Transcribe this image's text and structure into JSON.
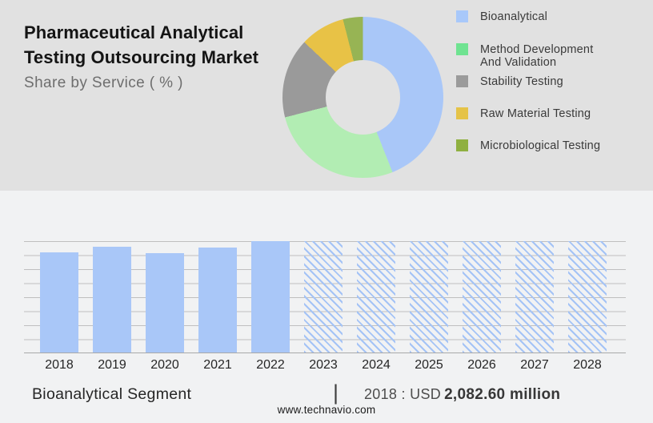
{
  "header": {
    "title": "Pharmaceutical Analytical Testing Outsourcing Market",
    "subtitle": "Share by Service ( % )"
  },
  "chart_data": [
    {
      "type": "pie",
      "subtype": "donut",
      "title": "Share by Service ( % )",
      "labels": [
        "Bioanalytical",
        "Method Development And Validation",
        "Stability Testing",
        "Raw Material Testing",
        "Microbiological Testing"
      ],
      "legend_labels": [
        "Bioanalytical",
        "Method Development\nAnd Validation",
        "Stability Testing",
        "Raw Material Testing",
        "Microbiological Testing"
      ],
      "values_pct": [
        44,
        27,
        16,
        9,
        4
      ],
      "colors": [
        "#A9C7F8",
        "#B2EDB3",
        "#9A9A9A",
        "#E8C246",
        "#97B454"
      ],
      "legend_colors": [
        "#A8C8FA",
        "#6FE391",
        "#9B9B9B",
        "#E5C348",
        "#8FB040"
      ],
      "start_angle_deg": 0,
      "direction": "clockwise",
      "legend_position": "right"
    },
    {
      "type": "bar",
      "title": "Bioanalytical Segment",
      "categories": [
        "2018",
        "2019",
        "2020",
        "2021",
        "2022",
        "2023",
        "2024",
        "2025",
        "2026",
        "2027",
        "2028"
      ],
      "values_pct_of_max": [
        90,
        95,
        89.5,
        94.5,
        100,
        100,
        100,
        100,
        100,
        100,
        100
      ],
      "hatched_forecast": [
        false,
        false,
        false,
        false,
        false,
        true,
        true,
        true,
        true,
        true,
        true
      ],
      "bar_color": "#A9C7F8",
      "gridlines": true,
      "y_axis_labels_shown": false,
      "xlabel": "",
      "ylabel": "",
      "known_value": {
        "year": "2018",
        "value": "USD 2,082.60 million"
      }
    }
  ],
  "footer": {
    "segment_label": "Bioanalytical Segment",
    "divider": "|",
    "value_prefix": "2018 : USD",
    "value_bold": "2,082.60 million",
    "website": "www.technavio.com"
  },
  "colors": {
    "top_bg": "#E1E1E1",
    "bottom_bg": "#F1F2F3",
    "bar_blue": "#A9C7F8"
  }
}
